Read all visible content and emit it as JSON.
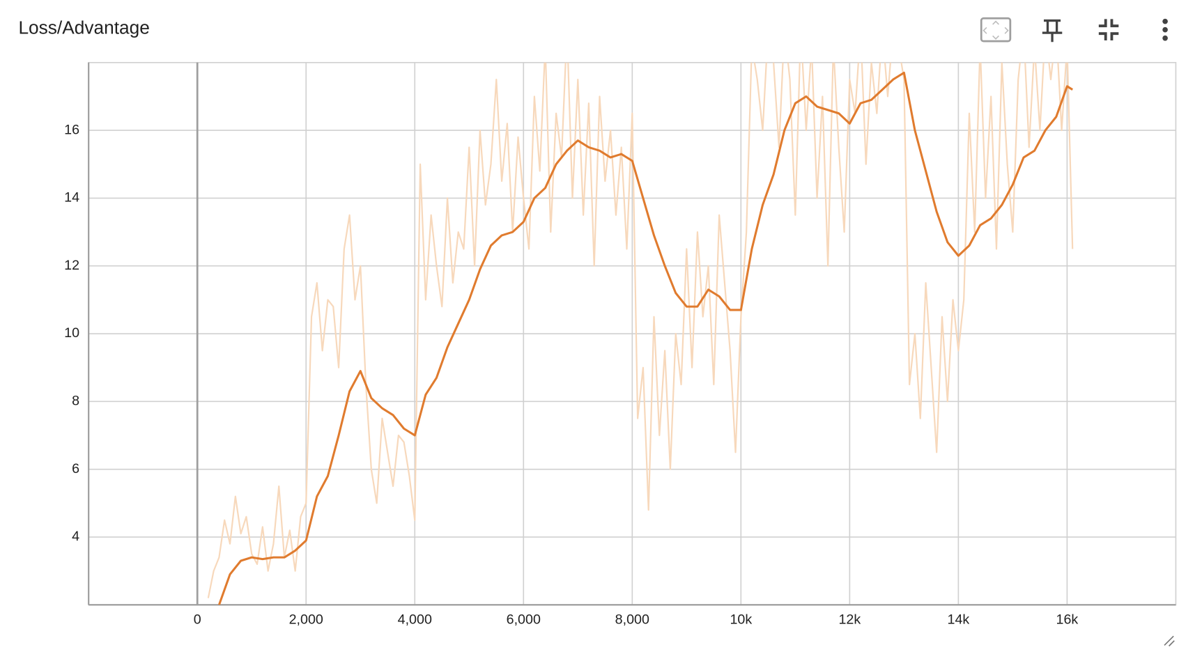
{
  "chart_data": {
    "type": "line",
    "title": "Loss/Advantage",
    "xlim": [
      -2000,
      18000
    ],
    "ylim": [
      2,
      18
    ],
    "xticks": [
      0,
      {
        "value": 2000,
        "label": "2,000"
      },
      {
        "value": 4000,
        "label": "4,000"
      },
      {
        "value": 6000,
        "label": "6,000"
      },
      {
        "value": 8000,
        "label": "8,000"
      },
      {
        "value": 10000,
        "label": "10k"
      },
      {
        "value": 12000,
        "label": "12k"
      },
      {
        "value": 14000,
        "label": "14k"
      },
      {
        "value": 16000,
        "label": "16k"
      }
    ],
    "yticks": [
      4,
      6,
      8,
      10,
      12,
      14,
      16
    ],
    "grid": true,
    "series": [
      {
        "color": "#f7d8bb",
        "x": [
          200,
          300,
          400,
          500,
          600,
          700,
          800,
          900,
          1000,
          1100,
          1200,
          1300,
          1400,
          1500,
          1600,
          1700,
          1800,
          1900,
          2000,
          2100,
          2200,
          2300,
          2400,
          2500,
          2600,
          2700,
          2800,
          2900,
          3000,
          3100,
          3200,
          3300,
          3400,
          3500,
          3600,
          3700,
          3800,
          3900,
          4000,
          4100,
          4200,
          4300,
          4400,
          4500,
          4600,
          4700,
          4800,
          4900,
          5000,
          5100,
          5200,
          5300,
          5400,
          5500,
          5600,
          5700,
          5800,
          5900,
          6000,
          6100,
          6200,
          6300,
          6400,
          6500,
          6600,
          6700,
          6800,
          6900,
          7000,
          7100,
          7200,
          7300,
          7400,
          7500,
          7600,
          7700,
          7800,
          7900,
          8000,
          8100,
          8200,
          8300,
          8400,
          8500,
          8600,
          8700,
          8800,
          8900,
          9000,
          9100,
          9200,
          9300,
          9400,
          9500,
          9600,
          9700,
          9800,
          9900,
          10000,
          10100,
          10200,
          10300,
          10400,
          10500,
          10600,
          10700,
          10800,
          10900,
          11000,
          11100,
          11200,
          11300,
          11400,
          11500,
          11600,
          11700,
          11800,
          11900,
          12000,
          12100,
          12200,
          12300,
          12400,
          12500,
          12600,
          12700,
          12800,
          12900,
          13000,
          13100,
          13200,
          13300,
          13400,
          13500,
          13600,
          13700,
          13800,
          13900,
          14000,
          14100,
          14200,
          14300,
          14400,
          14500,
          14600,
          14700,
          14800,
          14900,
          15000,
          15100,
          15200,
          15300,
          15400,
          15500,
          15600,
          15700,
          15800,
          15900,
          16000,
          16100
        ],
        "values": [
          2.2,
          3.0,
          3.4,
          4.5,
          3.8,
          5.2,
          4.1,
          4.6,
          3.5,
          3.2,
          4.3,
          3.0,
          3.8,
          5.5,
          3.4,
          4.2,
          3.0,
          4.6,
          5.0,
          10.5,
          11.5,
          9.5,
          11.0,
          10.8,
          9.0,
          12.5,
          13.5,
          11.0,
          12.0,
          8.5,
          6.0,
          5.0,
          7.5,
          6.5,
          5.5,
          7.0,
          6.8,
          5.8,
          4.5,
          15.0,
          11.0,
          13.5,
          12.0,
          10.8,
          14.0,
          11.5,
          13.0,
          12.5,
          15.5,
          12.0,
          16.0,
          13.8,
          15.0,
          17.5,
          14.5,
          16.2,
          13.0,
          15.8,
          14.0,
          12.5,
          17.0,
          14.8,
          18.5,
          13.0,
          16.5,
          15.2,
          19.0,
          14.0,
          17.5,
          13.5,
          16.8,
          12.0,
          17.0,
          14.5,
          16.0,
          13.5,
          15.5,
          12.5,
          16.5,
          7.5,
          9.0,
          4.8,
          10.5,
          7.0,
          9.5,
          6.0,
          10.0,
          8.5,
          12.5,
          9.0,
          13.0,
          10.5,
          12.0,
          8.5,
          13.5,
          11.5,
          9.5,
          6.5,
          10.5,
          13.0,
          18.5,
          17.5,
          16.0,
          19.0,
          18.0,
          15.5,
          19.0,
          17.5,
          13.5,
          19.0,
          16.0,
          18.5,
          14.0,
          17.0,
          12.0,
          18.5,
          15.5,
          13.0,
          17.5,
          16.5,
          19.0,
          15.0,
          18.0,
          16.5,
          19.0,
          17.0,
          19.0,
          18.5,
          17.5,
          8.5,
          10.0,
          7.5,
          11.5,
          9.0,
          6.5,
          10.5,
          8.0,
          11.0,
          9.5,
          11.0,
          16.5,
          13.0,
          18.5,
          14.0,
          17.0,
          12.5,
          18.0,
          15.0,
          13.0,
          17.5,
          19.0,
          15.5,
          18.5,
          16.0,
          19.0,
          17.5,
          19.0,
          16.0,
          18.5,
          12.5
        ]
      },
      {
        "color": "#e07b2e",
        "x": [
          400,
          600,
          800,
          1000,
          1200,
          1400,
          1600,
          1800,
          2000,
          2200,
          2400,
          2600,
          2800,
          3000,
          3200,
          3400,
          3600,
          3800,
          4000,
          4200,
          4400,
          4600,
          4800,
          5000,
          5200,
          5400,
          5600,
          5800,
          6000,
          6200,
          6400,
          6600,
          6800,
          7000,
          7200,
          7400,
          7600,
          7800,
          8000,
          8200,
          8400,
          8600,
          8800,
          9000,
          9200,
          9400,
          9600,
          9800,
          10000,
          10200,
          10400,
          10600,
          10800,
          11000,
          11200,
          11400,
          11600,
          11800,
          12000,
          12200,
          12400,
          12600,
          12800,
          13000,
          13200,
          13400,
          13600,
          13800,
          14000,
          14200,
          14400,
          14600,
          14800,
          15000,
          15200,
          15400,
          15600,
          15800,
          16000,
          16100
        ],
        "values": [
          2.0,
          2.9,
          3.3,
          3.4,
          3.35,
          3.4,
          3.4,
          3.6,
          3.9,
          5.2,
          5.8,
          7.0,
          8.3,
          8.9,
          8.1,
          7.8,
          7.6,
          7.2,
          7.0,
          8.2,
          8.7,
          9.6,
          10.3,
          11.0,
          11.9,
          12.6,
          12.9,
          13.0,
          13.3,
          14.0,
          14.3,
          15.0,
          15.4,
          15.7,
          15.5,
          15.4,
          15.2,
          15.3,
          15.1,
          14.0,
          12.9,
          12.0,
          11.2,
          10.8,
          10.8,
          11.3,
          11.1,
          10.7,
          10.7,
          12.5,
          13.8,
          14.7,
          16.0,
          16.8,
          17.0,
          16.7,
          16.6,
          16.5,
          16.2,
          16.8,
          16.9,
          17.2,
          17.5,
          17.7,
          16.0,
          14.8,
          13.6,
          12.7,
          12.3,
          12.6,
          13.2,
          13.4,
          13.8,
          14.4,
          15.2,
          15.4,
          16.0,
          16.4,
          17.3,
          17.2
        ]
      }
    ]
  }
}
